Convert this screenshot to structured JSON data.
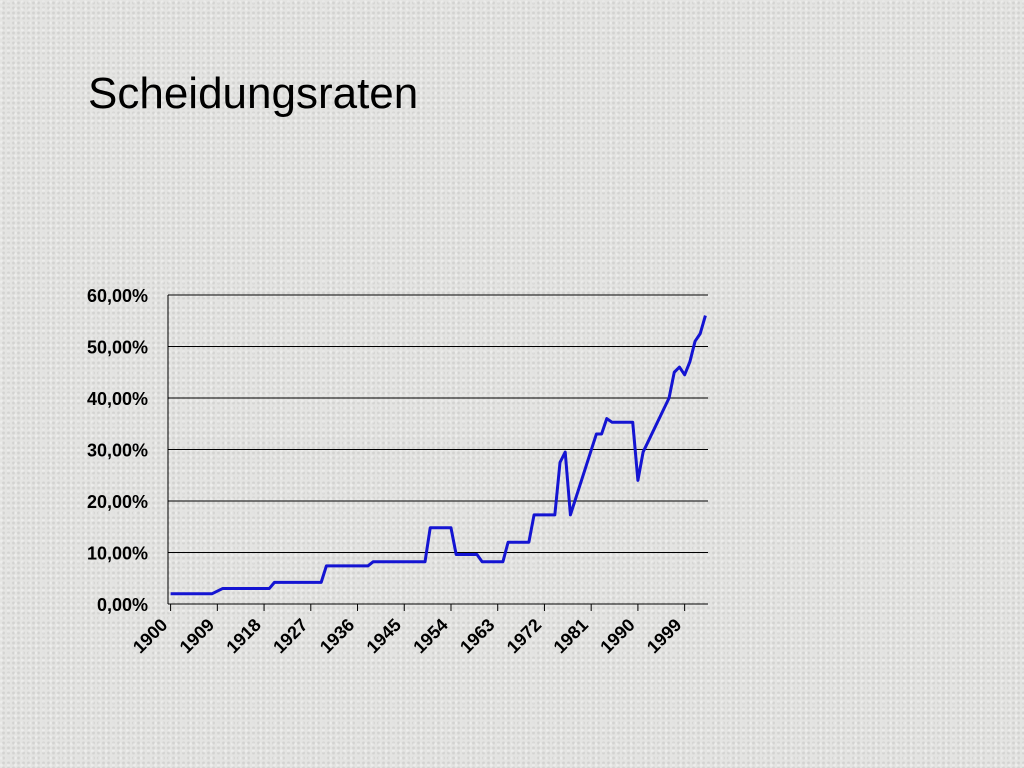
{
  "header": {
    "title": "Scheidungsraten"
  },
  "chart_data": {
    "type": "line",
    "x": [
      1900,
      1908,
      1910,
      1919,
      1920,
      1929,
      1930,
      1938,
      1939,
      1949,
      1950,
      1954,
      1955,
      1959,
      1960,
      1964,
      1965,
      1969,
      1970,
      1974,
      1975,
      1976,
      1977,
      1982,
      1983,
      1984,
      1985,
      1989,
      1990,
      1991,
      1996,
      1997,
      1998,
      1999,
      2000,
      2001,
      2002,
      2003
    ],
    "series": [
      {
        "name": "Scheidungsraten",
        "color": "#1414d2",
        "values": [
          2,
          2,
          3,
          3,
          4.2,
          4.2,
          7.4,
          7.4,
          8.2,
          8.2,
          14.8,
          14.8,
          9.6,
          9.6,
          8.2,
          8.2,
          12,
          12,
          17.3,
          17.3,
          27.5,
          29.5,
          17.3,
          33,
          33,
          36,
          35.3,
          35.3,
          24,
          29.5,
          40,
          45,
          46,
          44.5,
          47,
          51,
          52.5,
          56
        ]
      }
    ],
    "xlim": [
      1900,
      2004
    ],
    "xticks": [
      1900,
      1909,
      1918,
      1927,
      1936,
      1945,
      1954,
      1963,
      1972,
      1981,
      1990,
      1999
    ],
    "ylim": [
      0,
      60
    ],
    "yticks": [
      {
        "value": 0,
        "label": "0,00%"
      },
      {
        "value": 10,
        "label": "10,00%"
      },
      {
        "value": 20,
        "label": "20,00%"
      },
      {
        "value": 30,
        "label": "30,00%"
      },
      {
        "value": 40,
        "label": "40,00%"
      },
      {
        "value": 50,
        "label": "50,00%"
      },
      {
        "value": 60,
        "label": "60,00%"
      }
    ],
    "grid": true
  }
}
